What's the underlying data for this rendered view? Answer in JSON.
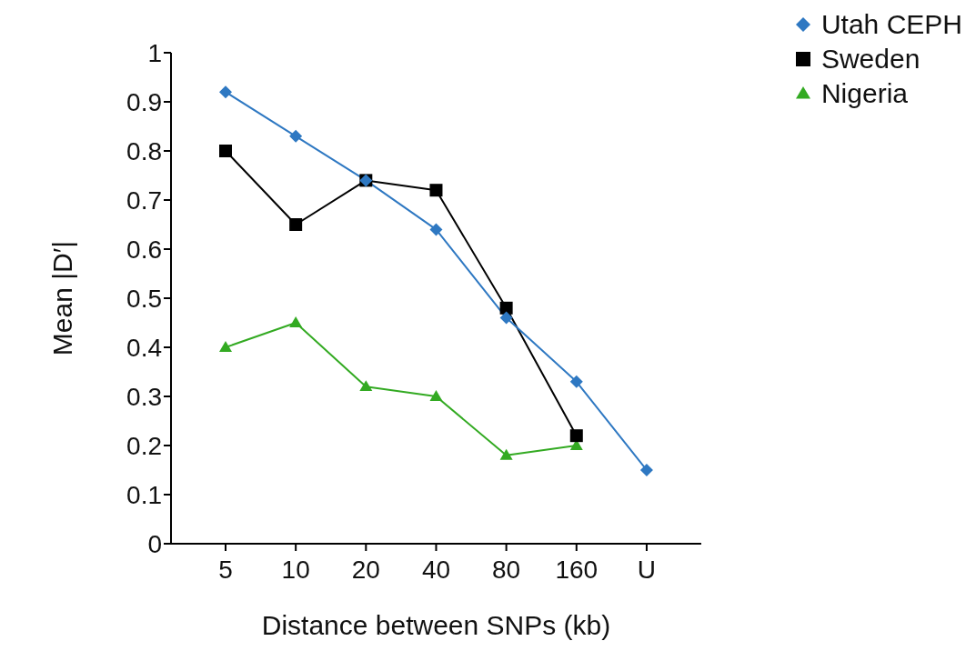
{
  "chart_data": {
    "type": "line",
    "xlabel": "Distance between SNPs (kb)",
    "ylabel": "Mean |D′|",
    "categories": [
      "5",
      "10",
      "20",
      "40",
      "80",
      "160",
      "U"
    ],
    "series": [
      {
        "name": "Utah CEPH",
        "color": "#2e78c2",
        "marker": "diamond",
        "values": [
          0.92,
          0.83,
          0.74,
          0.64,
          0.46,
          0.33,
          0.15
        ]
      },
      {
        "name": "Sweden",
        "color": "#000000",
        "marker": "square",
        "values": [
          0.8,
          0.65,
          0.74,
          0.72,
          0.48,
          0.22,
          null
        ]
      },
      {
        "name": "Nigeria",
        "color": "#33aa22",
        "marker": "triangle",
        "values": [
          0.4,
          0.45,
          0.32,
          0.3,
          0.18,
          0.2,
          null
        ]
      }
    ],
    "ylim": [
      0,
      1
    ],
    "yticks": [
      0,
      0.1,
      0.2,
      0.3,
      0.4,
      0.5,
      0.6,
      0.7,
      0.8,
      0.9,
      1
    ],
    "grid": false,
    "legend": "top right",
    "line_style": "solid"
  }
}
